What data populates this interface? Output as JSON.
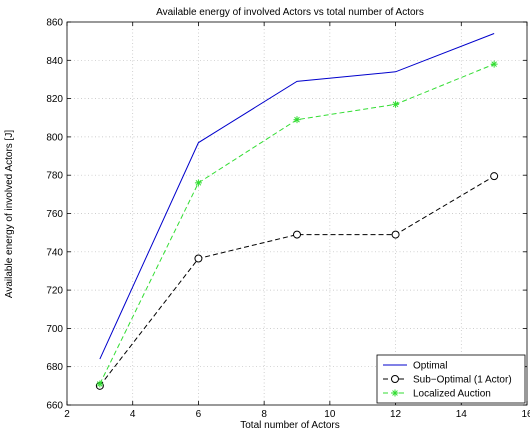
{
  "chart_data": {
    "type": "line",
    "title": "Available energy of involved Actors vs total number of Actors",
    "xlabel": "Total number of Actors",
    "ylabel": "Available energy of involved Actors [J]",
    "xlim": [
      2,
      16
    ],
    "ylim": [
      660,
      860
    ],
    "xticks": [
      2,
      4,
      6,
      8,
      10,
      12,
      14,
      16
    ],
    "yticks": [
      660,
      680,
      700,
      720,
      740,
      760,
      780,
      800,
      820,
      840,
      860
    ],
    "grid": true,
    "legend_position": "bottom-right",
    "x": [
      3,
      6,
      9,
      12,
      15
    ],
    "series": [
      {
        "name": "Optimal",
        "values": [
          684,
          797,
          829,
          834,
          854
        ],
        "color": "#0000cc",
        "line": "solid",
        "marker": "none"
      },
      {
        "name": "Sub−Optimal (1 Actor)",
        "values": [
          670,
          736.5,
          749,
          749,
          779.5
        ],
        "color": "#000000",
        "line": "dashed",
        "marker": "circle"
      },
      {
        "name": "Localized Auction",
        "values": [
          671,
          776,
          809,
          817,
          838
        ],
        "color": "#33dd33",
        "line": "dashed",
        "marker": "star"
      }
    ]
  }
}
